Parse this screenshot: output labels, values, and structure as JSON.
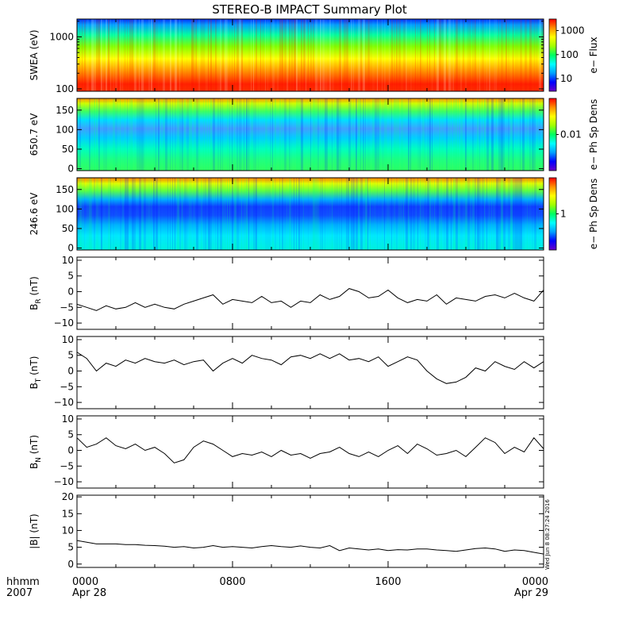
{
  "title": "STEREO-B IMPACT Summary Plot",
  "timestamp": "Wed Jun 8 08:27:24 2016",
  "time_axis": {
    "row1_label": "hhmm",
    "row2_label": "2007",
    "ticks": [
      {
        "hhmm": "0000",
        "date": "Apr 28",
        "hour": 0
      },
      {
        "hhmm": "0800",
        "date": "",
        "hour": 8
      },
      {
        "hhmm": "1600",
        "date": "",
        "hour": 16
      },
      {
        "hhmm": "0000",
        "date": "Apr 29",
        "hour": 24
      }
    ],
    "range_hours": [
      0,
      24
    ]
  },
  "colors": {
    "spectrogram_scale": [
      "#6a00c8",
      "#0000ff",
      "#00a0ff",
      "#00ffff",
      "#00ff60",
      "#a0ff00",
      "#ffff00",
      "#ff9000",
      "#ff0000"
    ],
    "line": "#000000"
  },
  "chart_data": [
    {
      "type": "heatmap",
      "name": "swea",
      "ylabel": "SWEA (eV)",
      "yscale": "log",
      "ylim": [
        90,
        2200
      ],
      "yticks": [
        {
          "v": 100,
          "label": "100"
        },
        {
          "v": 1000,
          "label": "1000"
        }
      ],
      "colorbar": {
        "label": "e− Flux",
        "scale": "log",
        "range": [
          3,
          3000
        ],
        "ticks": [
          {
            "v": 10,
            "label": "10"
          },
          {
            "v": 100,
            "label": "100"
          },
          {
            "v": 1000,
            "label": "1000"
          }
        ]
      }
    },
    {
      "type": "heatmap",
      "name": "pad650",
      "ylabel": "650.7 eV",
      "ylim": [
        -5,
        180
      ],
      "yticks": [
        {
          "v": 0,
          "label": "0"
        },
        {
          "v": 50,
          "label": "50"
        },
        {
          "v": 100,
          "label": "100"
        },
        {
          "v": 150,
          "label": "150"
        }
      ],
      "colorbar": {
        "label": "e− Ph Sp Dens",
        "scale": "log",
        "range": [
          0.0005,
          0.2
        ],
        "ticks": [
          {
            "v": 0.01,
            "label": "0.01"
          }
        ]
      }
    },
    {
      "type": "heatmap",
      "name": "pad246",
      "ylabel": "246.6 eV",
      "ylim": [
        -5,
        180
      ],
      "yticks": [
        {
          "v": 0,
          "label": "0"
        },
        {
          "v": 50,
          "label": "50"
        },
        {
          "v": 100,
          "label": "100"
        },
        {
          "v": 150,
          "label": "150"
        }
      ],
      "colorbar": {
        "label": "e− Ph Sp Dens",
        "scale": "log",
        "range": [
          0.05,
          20
        ],
        "ticks": [
          {
            "v": 1,
            "label": "1"
          }
        ]
      }
    },
    {
      "type": "line",
      "name": "br",
      "ylabel_main": "B",
      "ylabel_sub": "R",
      "ylabel_unit": " (nT)",
      "ylim": [
        -12,
        11
      ],
      "yticks": [
        {
          "v": -10,
          "label": "−10"
        },
        {
          "v": -5,
          "label": "−5"
        },
        {
          "v": 0,
          "label": "0"
        },
        {
          "v": 5,
          "label": "5"
        },
        {
          "v": 10,
          "label": "10"
        }
      ],
      "x": [
        0,
        0.5,
        1,
        1.5,
        2,
        2.5,
        3,
        3.5,
        4,
        4.5,
        5,
        5.5,
        6,
        6.5,
        7,
        7.5,
        8,
        8.5,
        9,
        9.5,
        10,
        10.5,
        11,
        11.5,
        12,
        12.5,
        13,
        13.5,
        14,
        14.5,
        15,
        15.5,
        16,
        16.5,
        17,
        17.5,
        18,
        18.5,
        19,
        19.5,
        20,
        20.5,
        21,
        21.5,
        22,
        22.5,
        23,
        23.5,
        24
      ],
      "y": [
        -4,
        -5,
        -6,
        -4.5,
        -5.5,
        -5,
        -3.5,
        -5,
        -4,
        -5,
        -5.5,
        -4,
        -3,
        -2,
        -1,
        -4,
        -2.5,
        -3,
        -3.5,
        -1.5,
        -3.5,
        -3,
        -5,
        -3,
        -3.5,
        -1,
        -2.5,
        -1.5,
        1,
        0,
        -2,
        -1.5,
        0.5,
        -2,
        -3.5,
        -2.5,
        -3,
        -1,
        -4,
        -2,
        -2.5,
        -3,
        -1.5,
        -1,
        -2,
        -0.5,
        -2,
        -3,
        0.5
      ]
    },
    {
      "type": "line",
      "name": "bt",
      "ylabel_main": "B",
      "ylabel_sub": "T",
      "ylabel_unit": " (nT)",
      "ylim": [
        -12,
        11
      ],
      "yticks": [
        {
          "v": -10,
          "label": "−10"
        },
        {
          "v": -5,
          "label": "−5"
        },
        {
          "v": 0,
          "label": "0"
        },
        {
          "v": 5,
          "label": "5"
        },
        {
          "v": 10,
          "label": "10"
        }
      ],
      "x": [
        0,
        0.5,
        1,
        1.5,
        2,
        2.5,
        3,
        3.5,
        4,
        4.5,
        5,
        5.5,
        6,
        6.5,
        7,
        7.5,
        8,
        8.5,
        9,
        9.5,
        10,
        10.5,
        11,
        11.5,
        12,
        12.5,
        13,
        13.5,
        14,
        14.5,
        15,
        15.5,
        16,
        16.5,
        17,
        17.5,
        18,
        18.5,
        19,
        19.5,
        20,
        20.5,
        21,
        21.5,
        22,
        22.5,
        23,
        23.5,
        24
      ],
      "y": [
        6,
        4,
        0,
        2.5,
        1.5,
        3.5,
        2.5,
        4,
        3,
        2.5,
        3.5,
        2,
        3,
        3.5,
        0,
        2.5,
        4,
        2.5,
        5,
        4,
        3.5,
        2,
        4.5,
        5,
        4,
        5.5,
        4,
        5.5,
        3.5,
        4,
        3,
        4.5,
        1.5,
        3,
        4.5,
        3.5,
        0,
        -2.5,
        -4,
        -3.5,
        -2,
        1,
        0,
        3,
        1.5,
        0.5,
        3,
        1,
        3
      ]
    },
    {
      "type": "line",
      "name": "bn",
      "ylabel_main": "B",
      "ylabel_sub": "N",
      "ylabel_unit": " (nT)",
      "ylim": [
        -12,
        11
      ],
      "yticks": [
        {
          "v": -10,
          "label": "−10"
        },
        {
          "v": -5,
          "label": "−5"
        },
        {
          "v": 0,
          "label": "0"
        },
        {
          "v": 5,
          "label": "5"
        },
        {
          "v": 10,
          "label": "10"
        }
      ],
      "x": [
        0,
        0.5,
        1,
        1.5,
        2,
        2.5,
        3,
        3.5,
        4,
        4.5,
        5,
        5.5,
        6,
        6.5,
        7,
        7.5,
        8,
        8.5,
        9,
        9.5,
        10,
        10.5,
        11,
        11.5,
        12,
        12.5,
        13,
        13.5,
        14,
        14.5,
        15,
        15.5,
        16,
        16.5,
        17,
        17.5,
        18,
        18.5,
        19,
        19.5,
        20,
        20.5,
        21,
        21.5,
        22,
        22.5,
        23,
        23.5,
        24
      ],
      "y": [
        4,
        1,
        2,
        4,
        1.5,
        0.5,
        2,
        0,
        1,
        -1,
        -4,
        -3,
        1,
        3,
        2,
        0,
        -2,
        -1,
        -1.5,
        -0.5,
        -2,
        0,
        -1.5,
        -1,
        -2.5,
        -1,
        -0.5,
        1,
        -1,
        -2,
        -0.5,
        -2,
        0,
        1.5,
        -1,
        2,
        0.5,
        -1.5,
        -1,
        0,
        -2,
        1,
        4,
        2.5,
        -1,
        1,
        -0.5,
        4,
        0.5
      ]
    },
    {
      "type": "line",
      "name": "bmag",
      "ylabel_main": "|B|",
      "ylabel_sub": "",
      "ylabel_unit": " (nT)",
      "ylim": [
        -1,
        20.5
      ],
      "yticks": [
        {
          "v": 0,
          "label": "0"
        },
        {
          "v": 5,
          "label": "5"
        },
        {
          "v": 10,
          "label": "10"
        },
        {
          "v": 15,
          "label": "15"
        },
        {
          "v": 20,
          "label": "20"
        }
      ],
      "x": [
        0,
        0.5,
        1,
        1.5,
        2,
        2.5,
        3,
        3.5,
        4,
        4.5,
        5,
        5.5,
        6,
        6.5,
        7,
        7.5,
        8,
        8.5,
        9,
        9.5,
        10,
        10.5,
        11,
        11.5,
        12,
        12.5,
        13,
        13.5,
        14,
        14.5,
        15,
        15.5,
        16,
        16.5,
        17,
        17.5,
        18,
        18.5,
        19,
        19.5,
        20,
        20.5,
        21,
        21.5,
        22,
        22.5,
        23,
        23.5,
        24
      ],
      "y": [
        7,
        6.5,
        6,
        6,
        6,
        5.8,
        5.8,
        5.6,
        5.5,
        5.3,
        5,
        5.2,
        4.8,
        5,
        5.5,
        5,
        5.2,
        5,
        4.8,
        5.2,
        5.5,
        5.2,
        5,
        5.4,
        5,
        4.8,
        5.5,
        4,
        4.8,
        4.5,
        4.2,
        4.5,
        4,
        4.3,
        4.2,
        4.5,
        4.5,
        4.2,
        4,
        3.8,
        4.2,
        4.6,
        4.8,
        4.5,
        3.8,
        4.2,
        4,
        3.5,
        3
      ]
    }
  ]
}
